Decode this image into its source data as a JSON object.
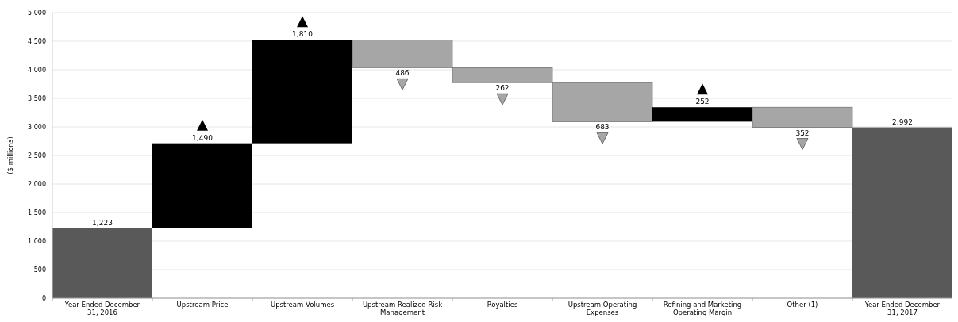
{
  "chart_data": {
    "type": "bar",
    "ylabel": "($ millions)",
    "categories": [
      "Year Ended December 31, 2016",
      "Upstream Price",
      "Upstream Volumes",
      "Upstream Realized Risk Management",
      "Royalties",
      "Upstream Operating Expenses",
      "Refining and Marketing Operating Margin",
      "Other (1)",
      "Year Ended December 31, 2017"
    ],
    "values": [
      1223,
      1490,
      1810,
      -486,
      -262,
      -683,
      252,
      -352,
      2992
    ],
    "base": [
      0,
      1223,
      2713,
      4523,
      4037,
      3775,
      3092,
      3344,
      0
    ],
    "colors": [
      "#595959",
      "#000000",
      "#000000",
      "#a6a6a6",
      "#a6a6a6",
      "#a6a6a6",
      "#000000",
      "#a6a6a6",
      "#595959"
    ],
    "value_labels": [
      "1,223",
      "1,490",
      "1,810",
      "486",
      "262",
      "683",
      "252",
      "352",
      "2,992"
    ],
    "ylim": [
      0,
      5000
    ],
    "yticks": [
      0,
      500,
      {
        "value": 1000,
        "label": "1,000"
      },
      {
        "value": 1500,
        "label": "1,500"
      },
      {
        "value": 2000,
        "label": "2,000"
      },
      {
        "value": 2500,
        "label": "2,500"
      },
      {
        "value": 3000,
        "label": "3,000"
      },
      {
        "value": 3500,
        "label": "3,500"
      },
      {
        "value": 4000,
        "label": "4,000"
      },
      {
        "value": 4500,
        "label": "4,500"
      },
      {
        "value": 5000,
        "label": "5,000"
      }
    ],
    "grid": "y"
  }
}
